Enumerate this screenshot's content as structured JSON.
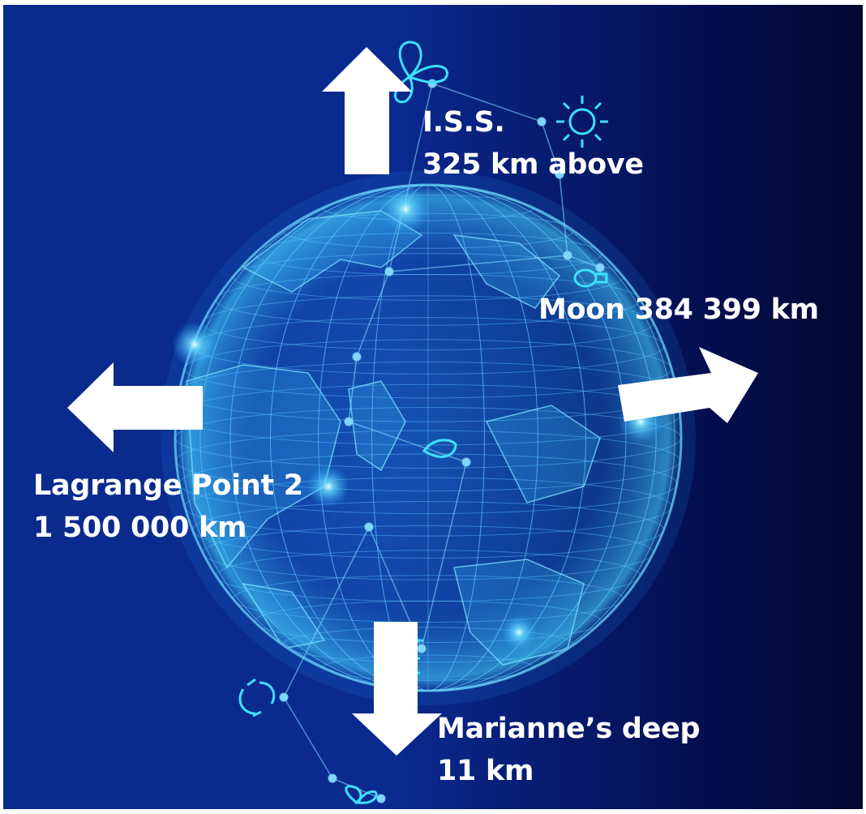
{
  "labels": {
    "iss": {
      "line1": "I.S.S.",
      "line2": "325 km above"
    },
    "moon": {
      "line1": "Moon 384 399 km"
    },
    "lagrange": {
      "line1": "Lagrange Point 2",
      "line2": "1 500 000 km"
    },
    "marianne": {
      "line1": "Marianne’s deep",
      "line2": "11 km"
    }
  },
  "icons": [
    "leaf-icon",
    "sun-icon",
    "lightbulb-icon",
    "drop-icon",
    "recycle-icon",
    "sprout-icon",
    "battery-icon"
  ],
  "colors": {
    "background_dark": "#020a3a",
    "background_mid": "#06248a",
    "globe_glow": "#3fd8ff",
    "grid_line": "#5fc8ff",
    "arrow": "#ffffff",
    "label_text": "#ffffff"
  }
}
